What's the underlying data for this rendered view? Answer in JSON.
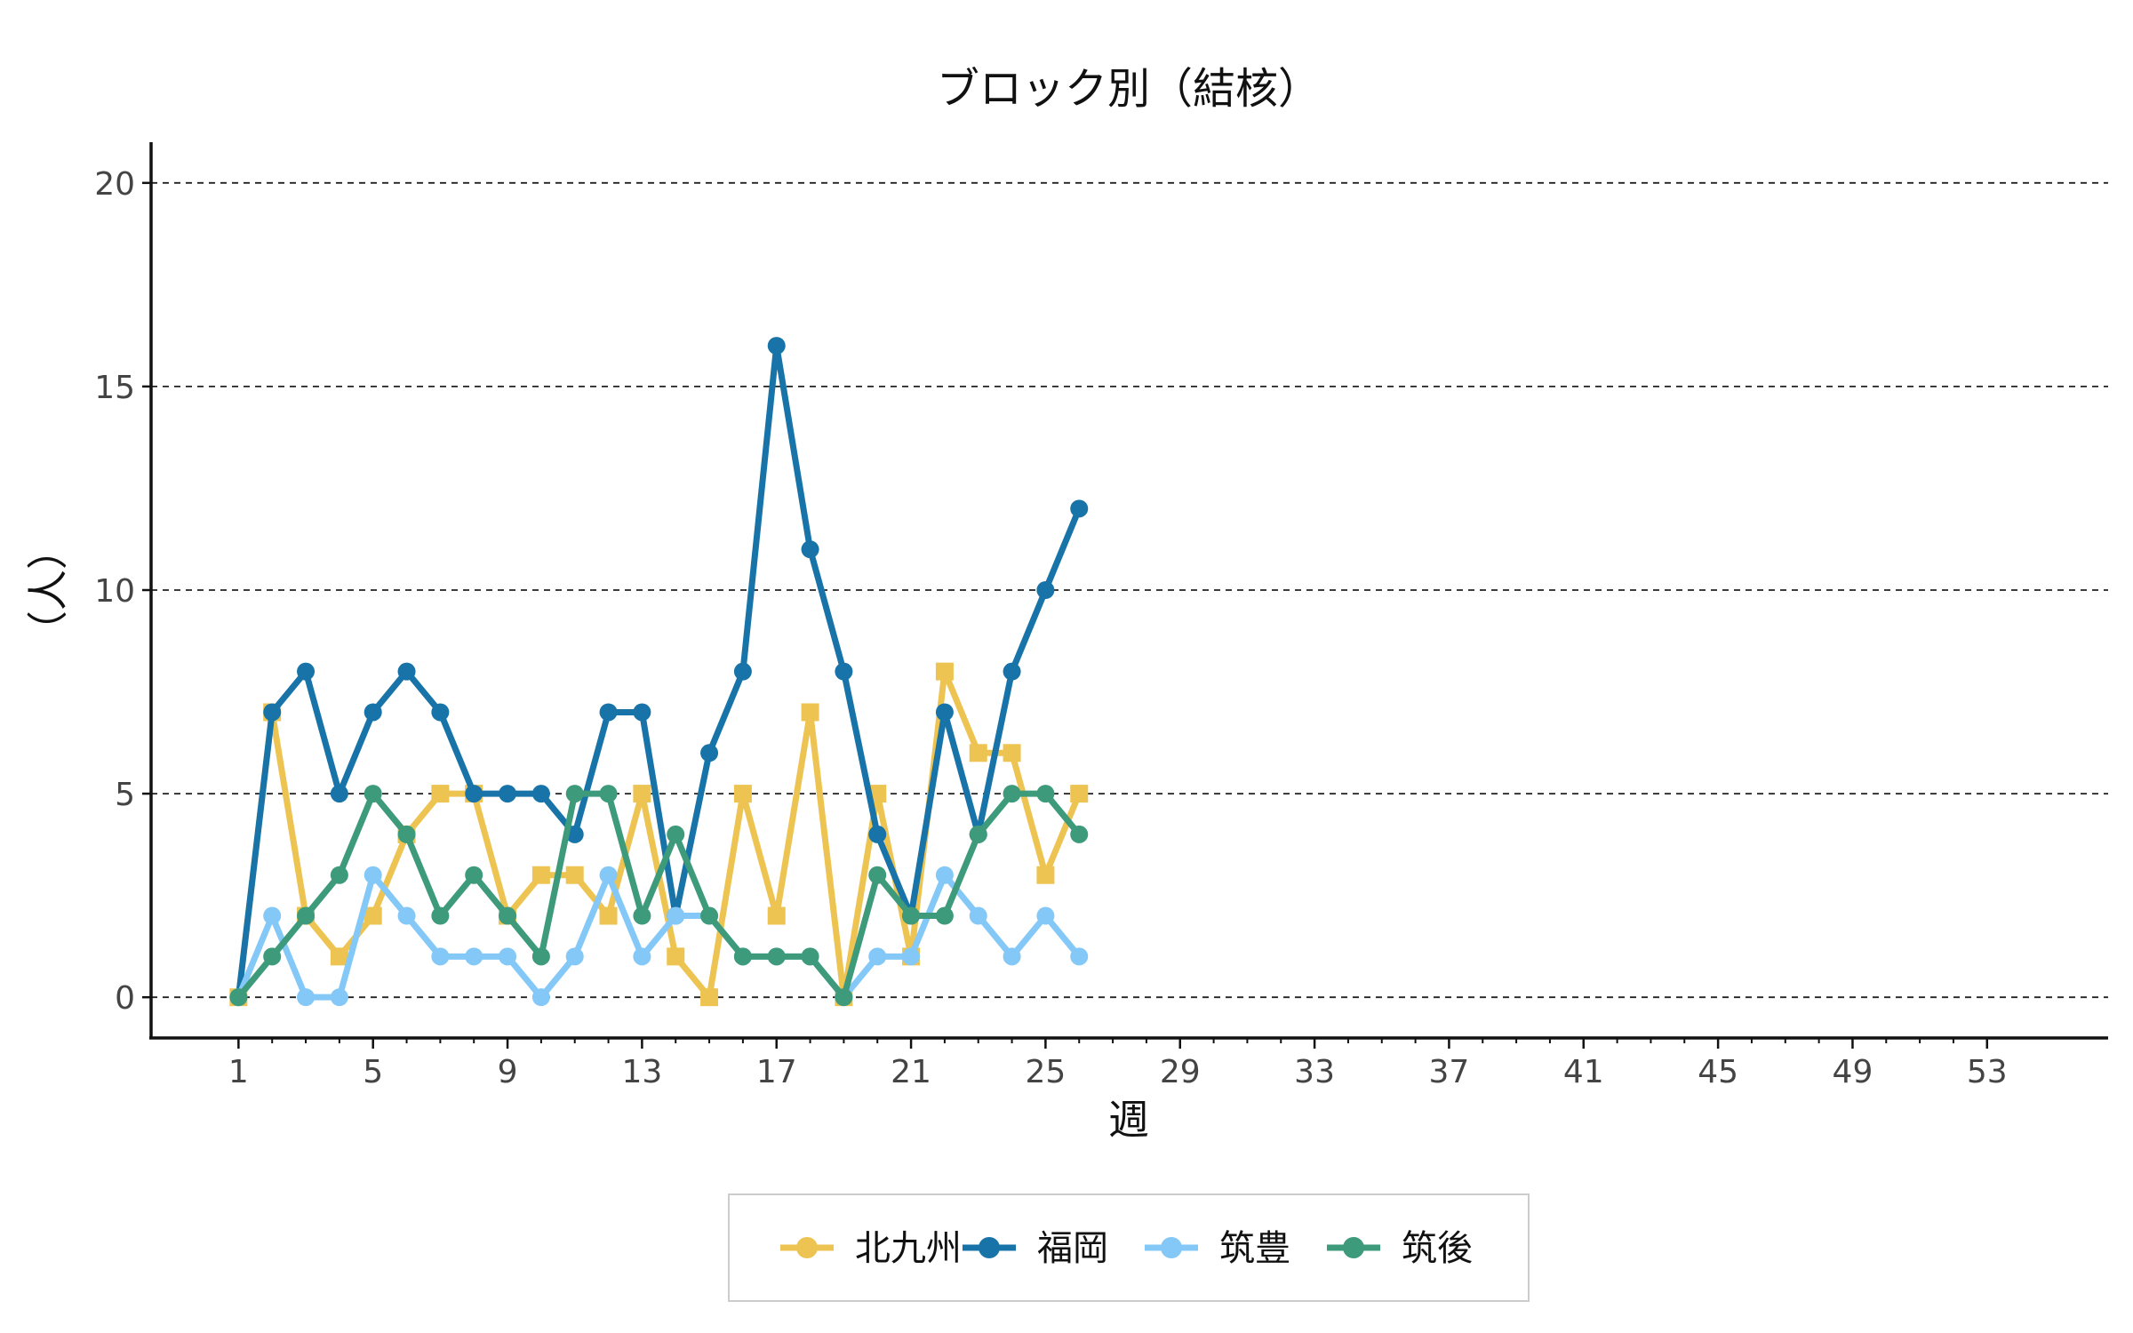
{
  "chart_data": {
    "type": "line",
    "title": "ブロック別（結核）",
    "xlabel": "週",
    "ylabel": "（人）",
    "xlim": [
      -1.6,
      56.6
    ],
    "ylim": [
      -1,
      21
    ],
    "x_ticks": [
      1,
      5,
      9,
      13,
      17,
      21,
      25,
      29,
      33,
      37,
      41,
      45,
      49,
      53
    ],
    "y_ticks": [
      0,
      5,
      10,
      15,
      20
    ],
    "grid": "horizontal dashed",
    "legend_position": "bottom",
    "x": [
      1,
      2,
      3,
      4,
      5,
      6,
      7,
      8,
      9,
      10,
      11,
      12,
      13,
      14,
      15,
      16,
      17,
      18,
      19,
      20,
      21,
      22,
      23,
      24,
      25,
      26
    ],
    "series": [
      {
        "name": "北九州",
        "color": "#EDC452",
        "marker": "square",
        "values": [
          0,
          7,
          2,
          1,
          2,
          4,
          5,
          5,
          2,
          3,
          3,
          2,
          5,
          1,
          0,
          5,
          2,
          7,
          0,
          5,
          1,
          8,
          6,
          6,
          3,
          5
        ]
      },
      {
        "name": "福岡",
        "color": "#1874A8",
        "marker": "circle",
        "values": [
          0,
          7,
          8,
          5,
          7,
          8,
          7,
          5,
          5,
          5,
          4,
          7,
          7,
          2,
          6,
          8,
          16,
          11,
          8,
          4,
          2,
          7,
          4,
          8,
          10,
          12
        ]
      },
      {
        "name": "筑豊",
        "color": "#84C8F7",
        "marker": "circle",
        "values": [
          0,
          2,
          0,
          0,
          3,
          2,
          1,
          1,
          1,
          0,
          1,
          3,
          1,
          2,
          2,
          1,
          1,
          1,
          0,
          1,
          1,
          3,
          2,
          1,
          2,
          1
        ]
      },
      {
        "name": "筑後",
        "color": "#3D9A7A",
        "marker": "circle",
        "values": [
          0,
          1,
          2,
          3,
          5,
          4,
          2,
          3,
          2,
          1,
          5,
          5,
          2,
          4,
          2,
          1,
          1,
          1,
          0,
          3,
          2,
          2,
          4,
          5,
          5,
          4
        ]
      }
    ]
  }
}
